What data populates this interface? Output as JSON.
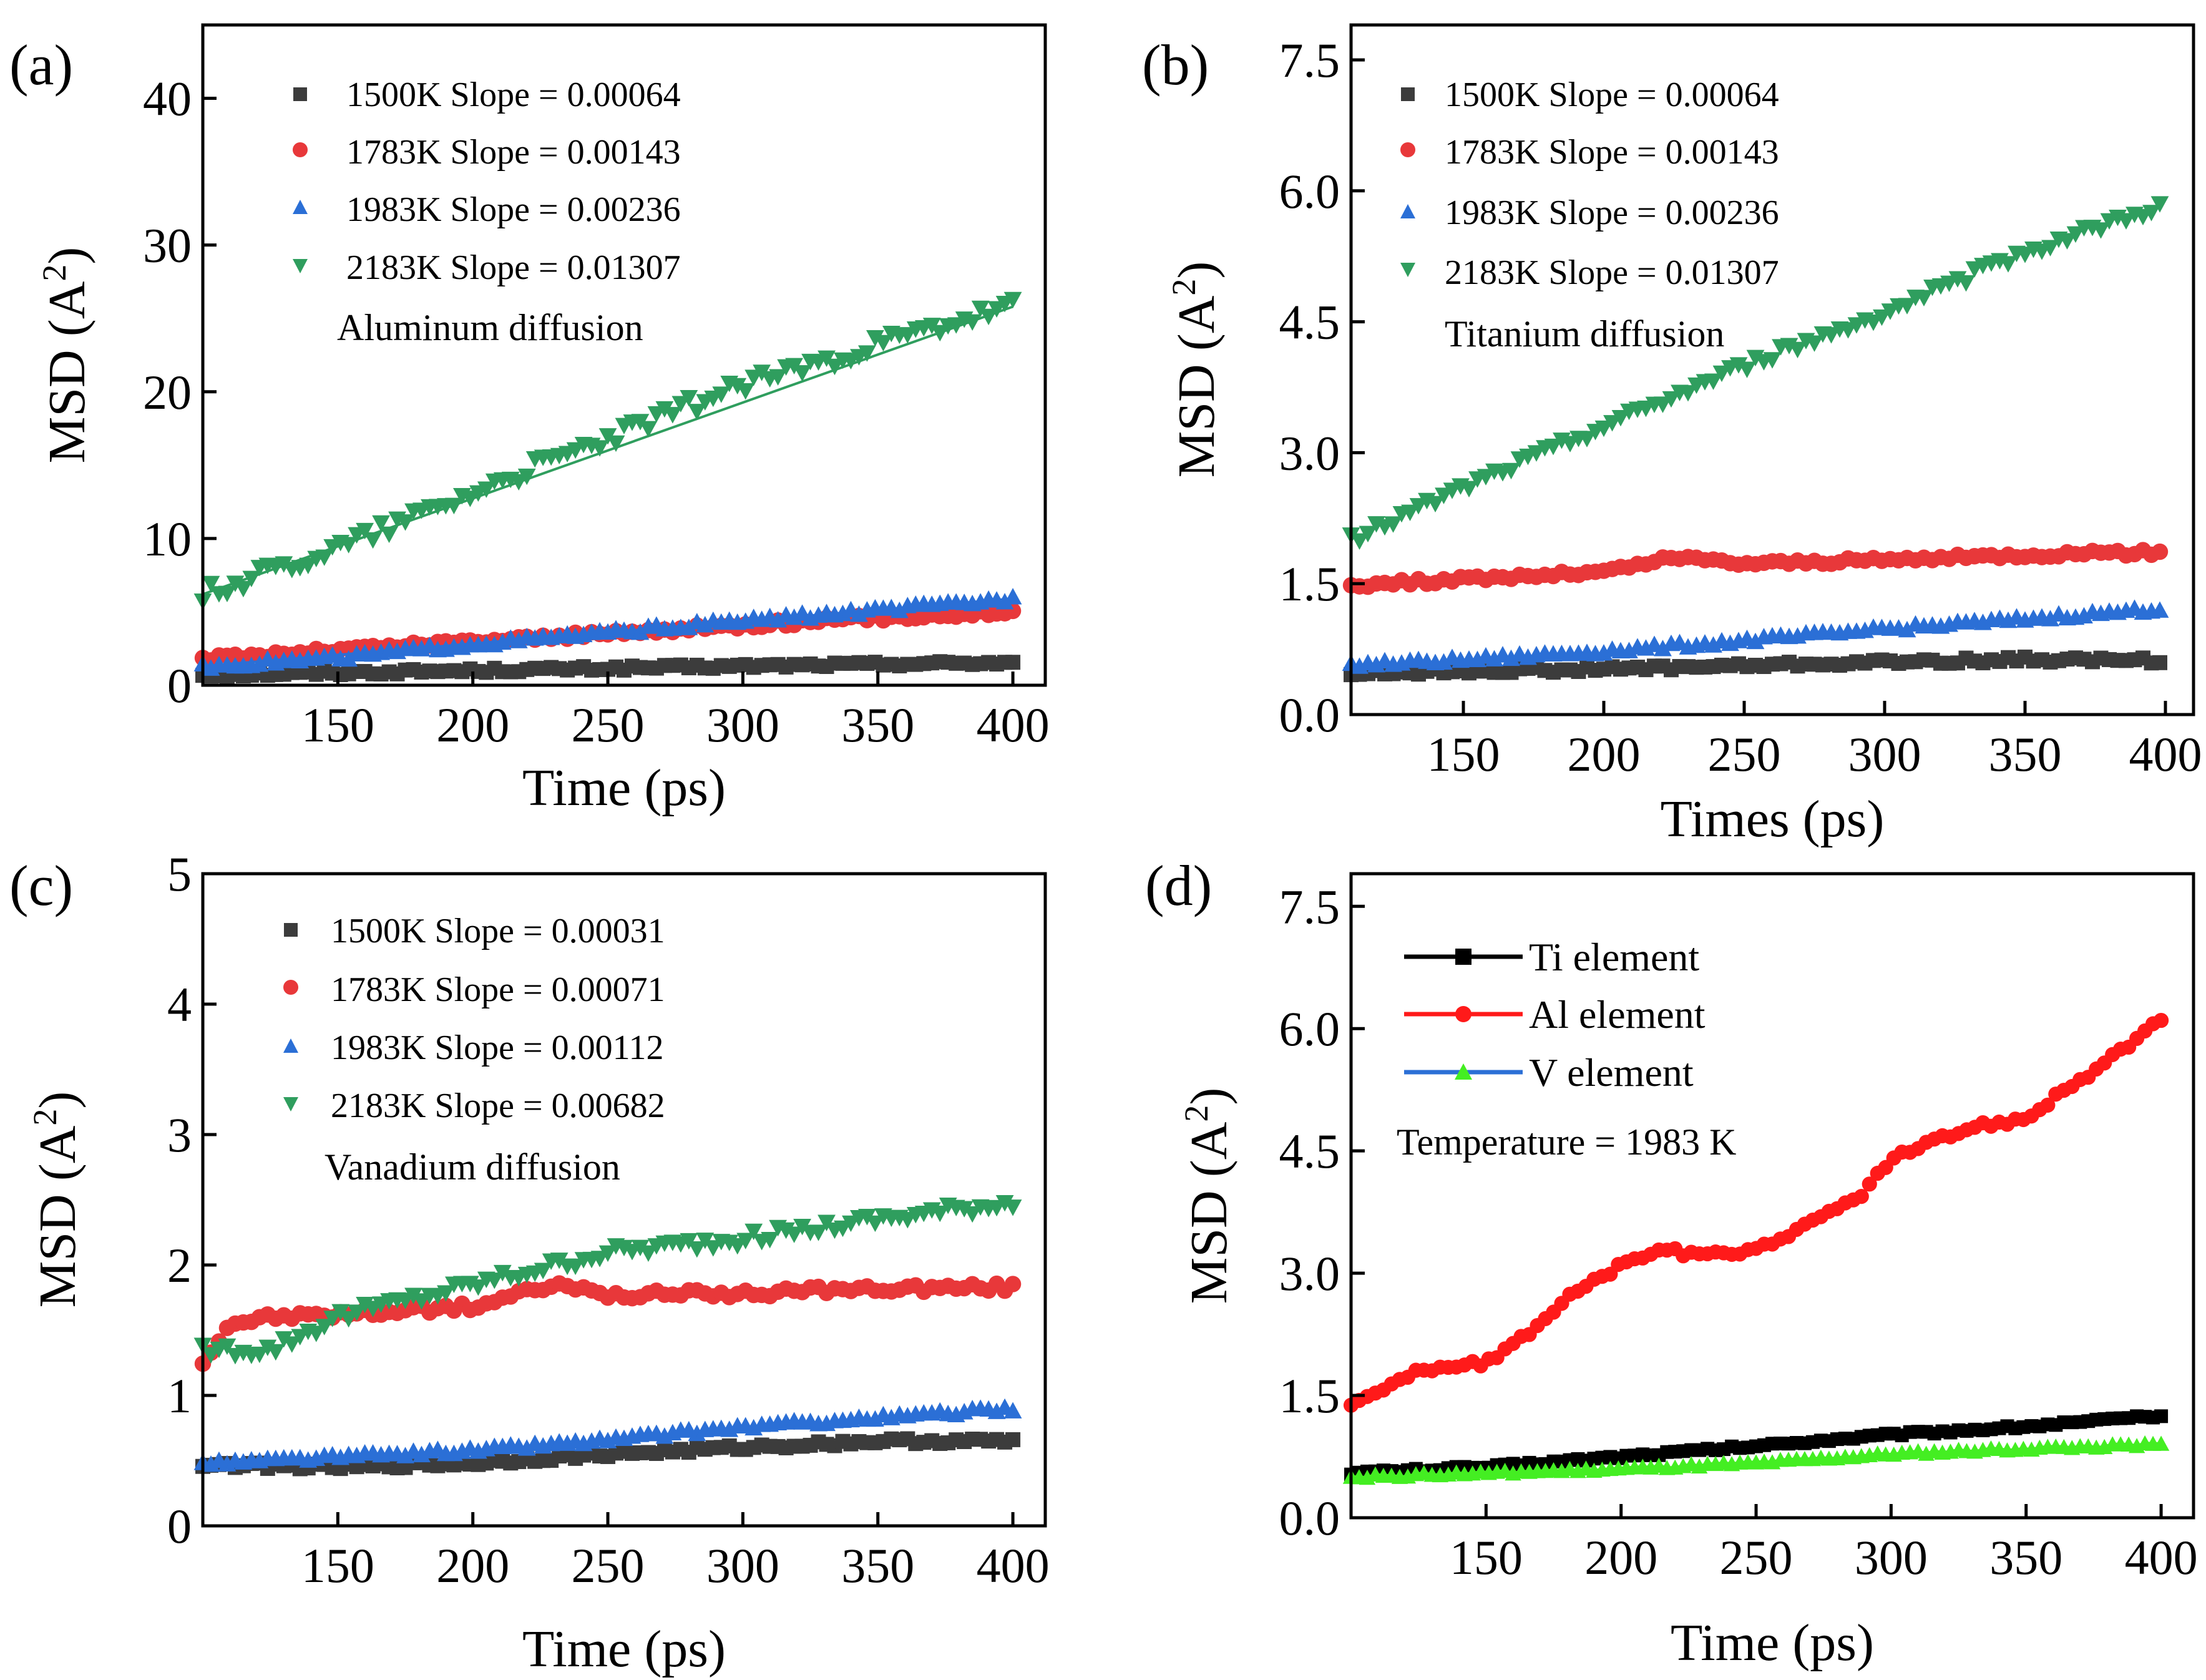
{
  "figure": {
    "description_labels": [
      "(a)",
      "(b)",
      "(c)",
      "(d)"
    ]
  },
  "chart_data": [
    {
      "type": "scatter",
      "panel_label": "(a)",
      "title": "",
      "xlabel": "Time (ps)",
      "ylabel": "MSD (A²)",
      "ylabel_main": "MSD (A",
      "ylabel_sup": "2",
      "ylabel_tail": ")",
      "xlim": [
        100,
        412
      ],
      "ylim": [
        0,
        45
      ],
      "xticks": [
        150,
        200,
        250,
        300,
        350,
        400
      ],
      "xtick_labels": [
        "150",
        "200",
        "250",
        "300",
        "350",
        "400"
      ],
      "yticks": [
        0,
        10,
        20,
        30,
        40
      ],
      "ytick_labels": [
        "0",
        "10",
        "20",
        "30",
        "40"
      ],
      "annotation": "Aluminum diffusion",
      "legend": [
        "1500K Slope = 0.00064",
        "1783K Slope = 0.00143",
        "1983K Slope = 0.00236",
        "2183K Slope = 0.01307"
      ],
      "series": [
        {
          "name": "1500K Slope = 0.00064",
          "color": "#3c3c3c",
          "marker": "square",
          "x": [
            100,
            150,
            200,
            250,
            300,
            350,
            400
          ],
          "y": [
            0.7,
            0.85,
            1.0,
            1.15,
            1.3,
            1.45,
            1.55
          ],
          "noise": 0.15,
          "fit": true
        },
        {
          "name": "1783K Slope = 0.00143",
          "color": "#e8383a",
          "marker": "circle",
          "x": [
            100,
            150,
            200,
            250,
            300,
            350,
            400
          ],
          "y": [
            1.8,
            2.4,
            3.0,
            3.5,
            4.1,
            4.6,
            5.0
          ],
          "noise": 0.2,
          "fit": true
        },
        {
          "name": "1983K Slope = 0.00236",
          "color": "#2b6fd6",
          "marker": "triangle-up",
          "x": [
            100,
            150,
            200,
            250,
            300,
            350,
            400
          ],
          "y": [
            1.3,
            1.9,
            2.8,
            3.6,
            4.4,
            5.1,
            5.9
          ],
          "noise": 0.2,
          "fit": true
        },
        {
          "name": "2183K Slope = 0.01307",
          "color": "#2f9e5e",
          "marker": "triangle-down",
          "x": [
            100,
            150,
            200,
            250,
            300,
            350,
            400
          ],
          "y": [
            6.2,
            9.4,
            13.2,
            16.8,
            20.5,
            23.2,
            25.8
          ],
          "noise": 0.6,
          "fit": true
        }
      ]
    },
    {
      "type": "scatter",
      "panel_label": "(b)",
      "title": "",
      "xlabel": "Times (ps)",
      "ylabel": "MSD (A²)",
      "ylabel_main": "MSD (A",
      "ylabel_sup": "2",
      "ylabel_tail": ")",
      "xlim": [
        110,
        410
      ],
      "ylim": [
        0,
        7.9
      ],
      "xticks": [
        150,
        200,
        250,
        300,
        350,
        400
      ],
      "xtick_labels": [
        "150",
        "200",
        "250",
        "300",
        "350",
        "400"
      ],
      "yticks": [
        0.0,
        1.5,
        3.0,
        4.5,
        6.0,
        7.5
      ],
      "ytick_labels": [
        "0.0",
        "1.5",
        "3.0",
        "4.5",
        "6.0",
        "7.5"
      ],
      "annotation": "Titanium diffusion",
      "legend": [
        "1500K Slope = 0.00064",
        "1783K Slope = 0.00143",
        "1983K Slope = 0.00236",
        "2183K Slope = 0.01307"
      ],
      "series": [
        {
          "name": "1500K Slope = 0.00064",
          "color": "#3c3c3c",
          "marker": "square",
          "x": [
            110,
            150,
            200,
            250,
            300,
            350,
            400
          ],
          "y": [
            0.47,
            0.5,
            0.52,
            0.56,
            0.6,
            0.63,
            0.62
          ],
          "noise": 0.03,
          "fit": false
        },
        {
          "name": "1783K Slope = 0.00143",
          "color": "#e8383a",
          "marker": "circle",
          "x": [
            110,
            150,
            200,
            225,
            250,
            300,
            350,
            400
          ],
          "y": [
            1.48,
            1.55,
            1.63,
            1.8,
            1.73,
            1.77,
            1.83,
            1.86
          ],
          "noise": 0.03,
          "fit": false
        },
        {
          "name": "1983K Slope = 0.00236",
          "color": "#2b6fd6",
          "marker": "triangle-up",
          "x": [
            110,
            150,
            200,
            250,
            300,
            350,
            400
          ],
          "y": [
            0.57,
            0.63,
            0.73,
            0.85,
            0.98,
            1.1,
            1.22
          ],
          "noise": 0.03,
          "fit": false
        },
        {
          "name": "2183K Slope = 0.01307",
          "color": "#2f9e5e",
          "marker": "triangle-down",
          "x": [
            110,
            150,
            175,
            200,
            250,
            300,
            350,
            400
          ],
          "y": [
            2.0,
            2.6,
            2.95,
            3.3,
            4.0,
            4.6,
            5.3,
            5.85
          ],
          "noise": 0.06,
          "fit": false
        }
      ]
    },
    {
      "type": "scatter",
      "panel_label": "(c)",
      "title": "",
      "xlabel": "Time (ps)",
      "ylabel": "MSD (A²)",
      "ylabel_main": "MSD (A",
      "ylabel_sup": "2",
      "ylabel_tail": ")",
      "xlim": [
        100,
        412
      ],
      "ylim": [
        0,
        5
      ],
      "xticks": [
        150,
        200,
        250,
        300,
        350,
        400
      ],
      "xtick_labels": [
        "150",
        "200",
        "250",
        "300",
        "350",
        "400"
      ],
      "yticks": [
        0,
        1,
        2,
        3,
        4,
        5
      ],
      "ytick_labels": [
        "0",
        "1",
        "2",
        "3",
        "4",
        "5"
      ],
      "annotation": "Vanadium diffusion",
      "legend": [
        "1500K Slope = 0.00031",
        "1783K Slope = 0.00071",
        "1983K Slope = 0.00112",
        "2183K Slope = 0.00682"
      ],
      "series": [
        {
          "name": "1500K Slope = 0.00031",
          "color": "#3c3c3c",
          "marker": "square",
          "x": [
            100,
            150,
            200,
            250,
            300,
            350,
            400
          ],
          "y": [
            0.47,
            0.45,
            0.48,
            0.55,
            0.6,
            0.65,
            0.65
          ],
          "noise": 0.02,
          "fit": false
        },
        {
          "name": "1783K Slope = 0.00071",
          "color": "#e8383a",
          "marker": "circle",
          "x": [
            100,
            110,
            125,
            150,
            200,
            230,
            250,
            300,
            350,
            400
          ],
          "y": [
            1.25,
            1.55,
            1.6,
            1.62,
            1.68,
            1.85,
            1.77,
            1.78,
            1.82,
            1.83
          ],
          "noise": 0.03,
          "fit": false
        },
        {
          "name": "1983K Slope = 0.00112",
          "color": "#2b6fd6",
          "marker": "triangle-up",
          "x": [
            100,
            150,
            200,
            250,
            300,
            350,
            400
          ],
          "y": [
            0.48,
            0.53,
            0.58,
            0.66,
            0.76,
            0.83,
            0.9
          ],
          "noise": 0.02,
          "fit": false
        },
        {
          "name": "2183K Slope = 0.00682",
          "color": "#2f9e5e",
          "marker": "triangle-down",
          "x": [
            100,
            125,
            150,
            200,
            250,
            300,
            350,
            400
          ],
          "y": [
            1.35,
            1.35,
            1.6,
            1.85,
            2.1,
            2.2,
            2.35,
            2.48
          ],
          "noise": 0.05,
          "fit": false
        }
      ]
    },
    {
      "type": "line",
      "panel_label": "(d)",
      "title": "",
      "xlabel": "Time (ps)",
      "ylabel": "MSD (A²)",
      "ylabel_main": "MSD (A",
      "ylabel_sup": "2",
      "ylabel_tail": ")",
      "xlim": [
        100,
        412
      ],
      "ylim": [
        0,
        7.9
      ],
      "xticks": [
        150,
        200,
        250,
        300,
        350,
        400
      ],
      "xtick_labels": [
        "150",
        "200",
        "250",
        "300",
        "350",
        "400"
      ],
      "yticks": [
        0.0,
        1.5,
        3.0,
        4.5,
        6.0,
        7.5
      ],
      "ytick_labels": [
        "0.0",
        "1.5",
        "3.0",
        "4.5",
        "6.0",
        "7.5"
      ],
      "annotation": "Temperature = 1983 K",
      "legend": [
        "Ti element",
        "Al element",
        "V  element"
      ],
      "series": [
        {
          "name": "Ti element",
          "color": "#000000",
          "marker": "square",
          "x": [
            100,
            150,
            200,
            250,
            300,
            350,
            400
          ],
          "y": [
            0.55,
            0.62,
            0.75,
            0.88,
            1.02,
            1.12,
            1.25
          ],
          "noise": 0.02
        },
        {
          "name": "Al element",
          "color": "#ff1a1a",
          "marker": "circle",
          "x": [
            100,
            125,
            150,
            160,
            180,
            200,
            215,
            230,
            250,
            270,
            290,
            300,
            330,
            350,
            380,
            400
          ],
          "y": [
            1.4,
            1.8,
            1.9,
            2.1,
            2.7,
            3.1,
            3.3,
            3.2,
            3.3,
            3.6,
            4.0,
            4.4,
            4.8,
            4.9,
            5.6,
            6.1
          ],
          "noise": 0.04
        },
        {
          "name": "V  element",
          "color": "#44ee22",
          "marker": "triangle-up",
          "x": [
            100,
            150,
            200,
            250,
            300,
            350,
            400
          ],
          "y": [
            0.5,
            0.55,
            0.6,
            0.67,
            0.78,
            0.85,
            0.9
          ],
          "noise": 0.02
        }
      ]
    }
  ]
}
